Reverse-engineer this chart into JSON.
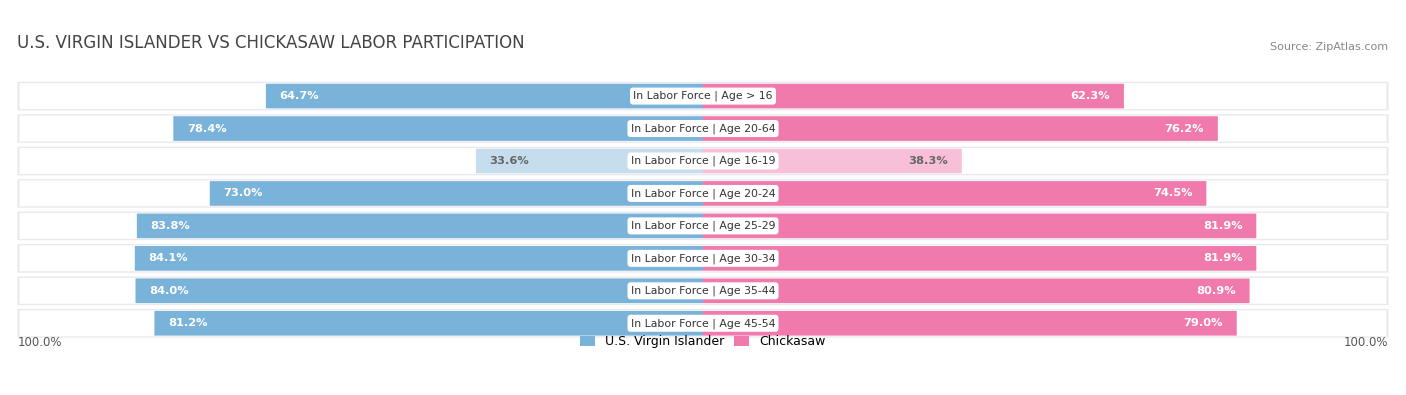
{
  "title": "U.S. VIRGIN ISLANDER VS CHICKASAW LABOR PARTICIPATION",
  "source": "Source: ZipAtlas.com",
  "categories": [
    "In Labor Force | Age > 16",
    "In Labor Force | Age 20-64",
    "In Labor Force | Age 16-19",
    "In Labor Force | Age 20-24",
    "In Labor Force | Age 25-29",
    "In Labor Force | Age 30-34",
    "In Labor Force | Age 35-44",
    "In Labor Force | Age 45-54"
  ],
  "left_values": [
    64.7,
    78.4,
    33.6,
    73.0,
    83.8,
    84.1,
    84.0,
    81.2
  ],
  "right_values": [
    62.3,
    76.2,
    38.3,
    74.5,
    81.9,
    81.9,
    80.9,
    79.0
  ],
  "left_label": "U.S. Virgin Islander",
  "right_label": "Chickasaw",
  "left_color_strong": "#7ab3d9",
  "left_color_light": "#c5dded",
  "right_color_strong": "#f07aab",
  "right_color_light": "#f7c0d8",
  "figure_bg": "#ffffff",
  "chart_bg": "#f0f0f0",
  "row_bg": "#e8e8e8",
  "bar_bg_color": "#ffffff",
  "axis_label_left": "100.0%",
  "axis_label_right": "100.0%",
  "max_value": 100.0,
  "title_fontsize": 12,
  "bar_height": 0.72,
  "title_color": "#444444",
  "source_color": "#888888",
  "label_color_dark": "#ffffff",
  "label_color_light": "#666666"
}
